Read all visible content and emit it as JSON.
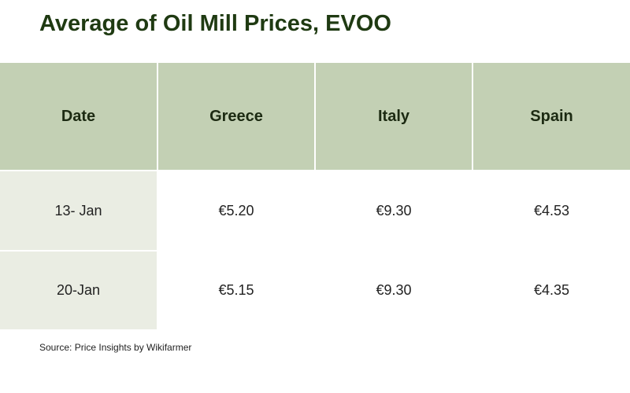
{
  "header": {
    "title": "Average of Oil Mill Prices, EVOO"
  },
  "table": {
    "columns": [
      "Date",
      "Greece",
      "Italy",
      "Spain"
    ],
    "rows": [
      [
        "13- Jan",
        "€5.20",
        "€9.30",
        "€4.53"
      ],
      [
        "20-Jan",
        "€5.15",
        "€9.30",
        "€4.35"
      ]
    ]
  },
  "footer": {
    "source": "Source: Price Insights by Wikifarmer"
  }
}
